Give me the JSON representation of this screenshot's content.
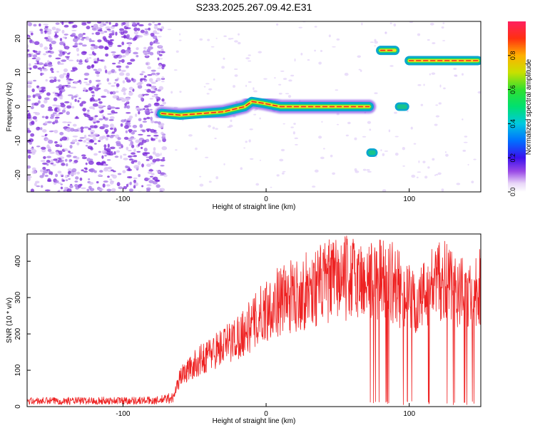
{
  "title": "S233.2025.267.09.42.E31",
  "colors": {
    "snr_line": "#ee2222",
    "ridge_core": "#ee2222",
    "ridge_halo": "#0aa6cf",
    "noise": "#7a28d8"
  },
  "chart_data": [
    {
      "type": "heatmap",
      "name": "spectrogram",
      "xlabel": "Height of straight line (km)",
      "ylabel": "Frequency (Hz)",
      "xlim": [
        -167,
        150
      ],
      "ylim": [
        -25,
        25
      ],
      "xticks": [
        -100,
        0,
        100
      ],
      "yticks": [
        -20,
        -10,
        0,
        10,
        20
      ],
      "colorbar": {
        "label": "Normalized spectral amplitude",
        "range": [
          0,
          1
        ],
        "ticks": [
          "0.0",
          "0.2",
          "0.4",
          "0.6",
          "0.8"
        ]
      },
      "ridges": [
        {
          "name": "main-trend",
          "points": [
            [
              -73,
              -2
            ],
            [
              -60,
              -2.5
            ],
            [
              -45,
              -2
            ],
            [
              -30,
              -1.5
            ],
            [
              -15,
              0
            ],
            [
              -10,
              1.5
            ],
            [
              -2,
              1
            ],
            [
              10,
              0
            ],
            [
              30,
              0
            ],
            [
              55,
              0
            ],
            [
              72,
              0
            ]
          ],
          "amplitude": 0.9
        },
        {
          "name": "low-blob",
          "points": [
            [
              73,
              -13.5
            ],
            [
              75,
              -13.5
            ]
          ],
          "amplitude": 0.3
        },
        {
          "name": "upper-left-band",
          "points": [
            [
              80,
              16.5
            ],
            [
              90,
              16.5
            ]
          ],
          "amplitude": 0.9
        },
        {
          "name": "mid-blob",
          "points": [
            [
              93,
              0
            ],
            [
              97,
              0
            ]
          ],
          "amplitude": 0.5
        },
        {
          "name": "upper-right-band",
          "points": [
            [
              100,
              13.5
            ],
            [
              148,
              13.5
            ]
          ],
          "amplitude": 0.9
        }
      ],
      "noise_region": {
        "x": [
          -167,
          -75
        ],
        "amplitude": 0.15
      }
    },
    {
      "type": "line",
      "name": "snr",
      "xlabel": "Height of straight line (km)",
      "ylabel": "SNR (10 * v/v)",
      "xlim": [
        -167,
        150
      ],
      "ylim": [
        0,
        475
      ],
      "xticks": [
        -100,
        0,
        100
      ],
      "yticks": [
        0,
        100,
        200,
        300,
        400
      ],
      "envelope": [
        [
          -167,
          18
        ],
        [
          -75,
          20
        ],
        [
          -65,
          30
        ],
        [
          -60,
          100
        ],
        [
          -50,
          140
        ],
        [
          -40,
          175
        ],
        [
          -25,
          215
        ],
        [
          -10,
          270
        ],
        [
          0,
          325
        ],
        [
          10,
          355
        ],
        [
          20,
          370
        ],
        [
          30,
          390
        ],
        [
          45,
          420
        ],
        [
          60,
          430
        ],
        [
          75,
          415
        ],
        [
          85,
          430
        ],
        [
          95,
          380
        ],
        [
          105,
          330
        ],
        [
          115,
          410
        ],
        [
          125,
          415
        ],
        [
          140,
          365
        ],
        [
          150,
          410
        ]
      ],
      "dropout_range": [
        67,
        148
      ]
    }
  ]
}
